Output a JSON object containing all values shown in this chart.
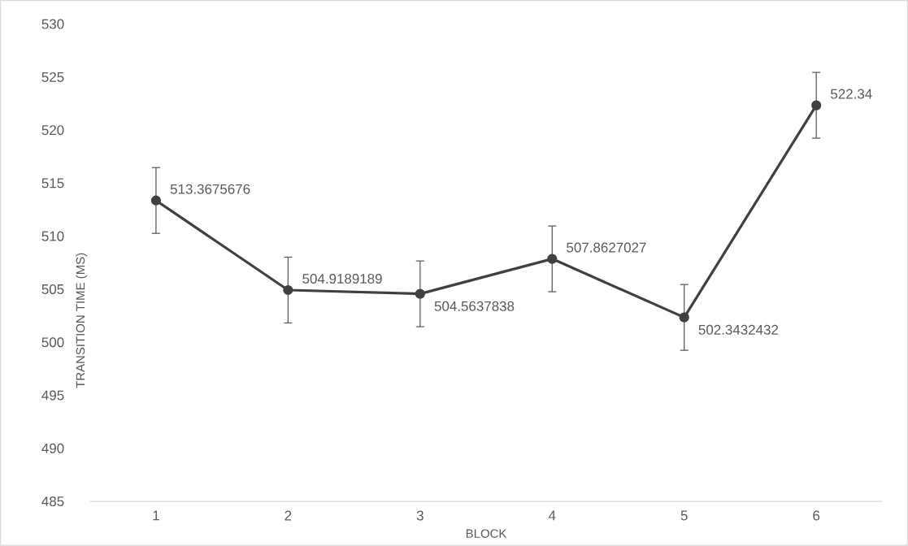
{
  "chart_data": {
    "type": "line",
    "xlabel": "BLOCK",
    "ylabel": "TRANSITION TIME (MS)",
    "categories": [
      "1",
      "2",
      "3",
      "4",
      "5",
      "6"
    ],
    "values": [
      513.3675676,
      504.9189189,
      504.5637838,
      507.8627027,
      502.3432432,
      522.34
    ],
    "errors": [
      3.1,
      3.1,
      3.1,
      3.1,
      3.1,
      3.1
    ],
    "color": "#404040",
    "marker": "circle",
    "line_style": "solid",
    "data_labels": true,
    "grid": false,
    "ylim": [
      485,
      530
    ],
    "yticks": [
      485,
      490,
      495,
      500,
      505,
      510,
      515,
      520,
      525,
      530
    ]
  }
}
